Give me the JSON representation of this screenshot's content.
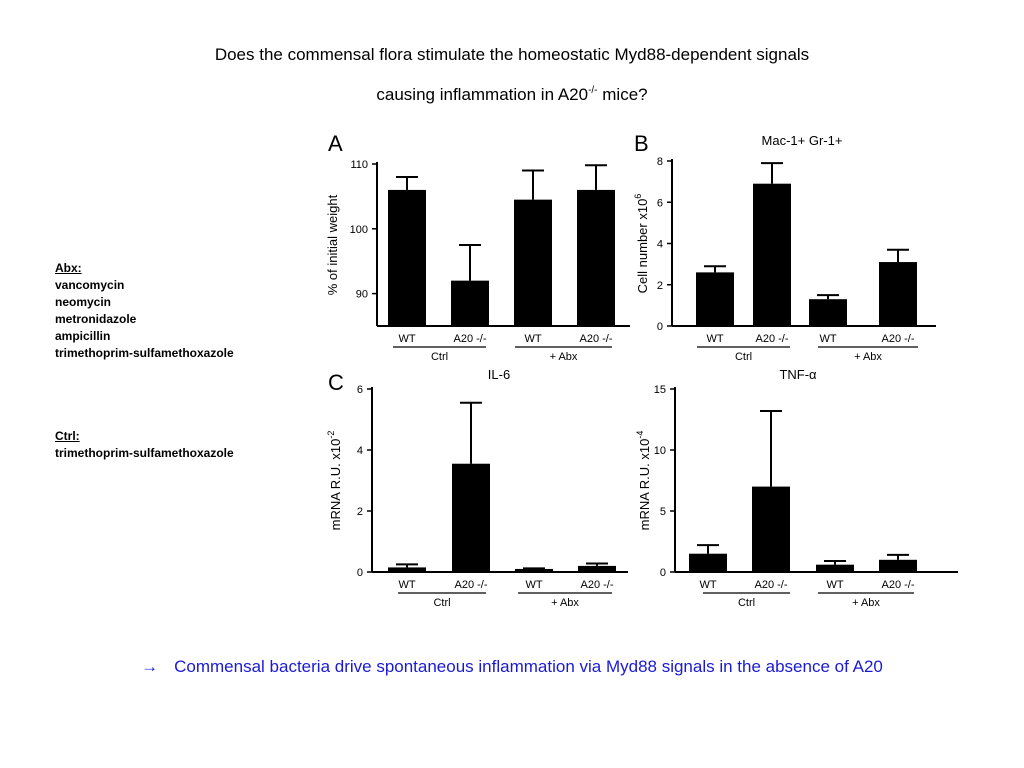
{
  "slide": {
    "title_line1": "Does the commensal flora stimulate the homeostatic Myd88-dependent signals",
    "title_line2_prefix": "causing inflammation in A20",
    "title_line2_sup": "-/-",
    "title_line2_suffix": " mice?",
    "abx": {
      "heading": "Abx:",
      "items": [
        "vancomycin",
        "neomycin",
        "metronidazole",
        "ampicillin",
        "trimethoprim-sulfamethoxazole"
      ]
    },
    "ctrl": {
      "heading": "Ctrl:",
      "items": [
        "trimethoprim-sulfamethoxazole"
      ]
    },
    "conclusion_arrow": "→",
    "conclusion": "Commensal bacteria drive spontaneous inflammation via Myd88 signals in the absence of A20",
    "colors": {
      "bar": "#000000",
      "conclusion": "#1a1ad6",
      "text": "#000000"
    }
  },
  "chart_data": [
    {
      "panel": "A",
      "type": "bar",
      "title": "",
      "ylabel": "% of initial weight",
      "ylim": [
        85,
        110
      ],
      "yticks": [
        "90",
        "100",
        "110"
      ],
      "categories": [
        "WT",
        "A20 -/-",
        "WT",
        "A20 -/-"
      ],
      "groups": [
        "Ctrl",
        "+ Abx"
      ],
      "values": [
        106,
        92,
        104.5,
        106
      ],
      "errors": [
        2,
        5.5,
        4.5,
        3.8
      ]
    },
    {
      "panel": "B",
      "type": "bar",
      "title": "Mac-1+ Gr-1+",
      "ylabel": "Cell number  x10",
      "ylabel_sup": "6",
      "ylim": [
        0,
        8
      ],
      "yticks": [
        "0",
        "2",
        "4",
        "6",
        "8"
      ],
      "categories": [
        "WT",
        "A20 -/-",
        "WT",
        "A20 -/-"
      ],
      "groups": [
        "Ctrl",
        "+ Abx"
      ],
      "values": [
        2.6,
        6.9,
        1.3,
        3.1
      ],
      "errors": [
        0.3,
        1.0,
        0.2,
        0.6
      ]
    },
    {
      "panel": "C",
      "type": "bar",
      "title": "IL-6",
      "ylabel": "mRNA  R.U. x10",
      "ylabel_sup": "-2",
      "ylim": [
        0,
        6
      ],
      "yticks": [
        "0",
        "2",
        "4",
        "6"
      ],
      "categories": [
        "WT",
        "A20 -/-",
        "WT",
        "A20 -/-"
      ],
      "groups": [
        "Ctrl",
        "+ Abx"
      ],
      "values": [
        0.15,
        3.55,
        0.1,
        0.2
      ],
      "errors": [
        0.1,
        2.0,
        0.02,
        0.08
      ]
    },
    {
      "panel": "",
      "type": "bar",
      "title": "TNF-α",
      "ylabel": "mRNA  R.U. x10",
      "ylabel_sup": "-4",
      "ylim": [
        0,
        15
      ],
      "yticks": [
        "0",
        "5",
        "10",
        "15"
      ],
      "categories": [
        "WT",
        "A20 -/-",
        "WT",
        "A20 -/-"
      ],
      "groups": [
        "Ctrl",
        "+ Abx"
      ],
      "values": [
        1.5,
        7.0,
        0.6,
        1.0
      ],
      "errors": [
        0.7,
        6.2,
        0.3,
        0.4
      ]
    }
  ]
}
